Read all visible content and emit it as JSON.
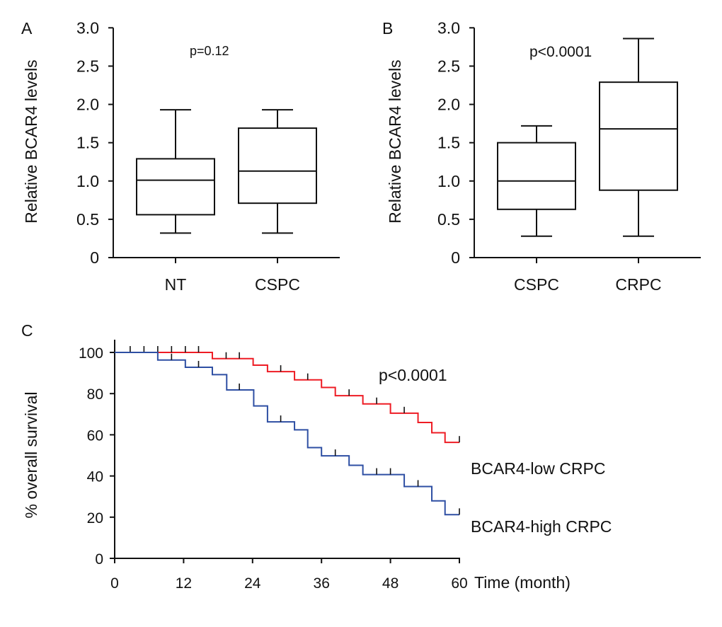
{
  "chart_data": [
    {
      "panel": "A",
      "type": "box",
      "ylabel": "Relative BCAR4 levels",
      "ylim": [
        0,
        3.0
      ],
      "yticks": [
        "0",
        "0.5",
        "1.0",
        "1.5",
        "2.0",
        "2.5",
        "3.0"
      ],
      "annotation": "p=0.12",
      "categories": [
        "NT",
        "CSPC"
      ],
      "boxes": [
        {
          "min": 0.32,
          "q1": 0.56,
          "median": 1.01,
          "q3": 1.29,
          "max": 1.93
        },
        {
          "min": 0.32,
          "q1": 0.71,
          "median": 1.13,
          "q3": 1.69,
          "max": 1.93
        }
      ]
    },
    {
      "panel": "B",
      "type": "box",
      "ylabel": "Relative BCAR4 levels",
      "ylim": [
        0,
        3.0
      ],
      "yticks": [
        "0",
        "0.5",
        "1.0",
        "1.5",
        "2.0",
        "2.5",
        "3.0"
      ],
      "annotation": "p<0.0001",
      "categories": [
        "CSPC",
        "CRPC"
      ],
      "boxes": [
        {
          "min": 0.28,
          "q1": 0.63,
          "median": 1.0,
          "q3": 1.5,
          "max": 1.72
        },
        {
          "min": 0.28,
          "q1": 0.88,
          "median": 1.68,
          "q3": 2.29,
          "max": 2.86
        }
      ]
    },
    {
      "panel": "C",
      "type": "line",
      "subtype": "kaplan-meier step",
      "ylabel": "% overall survival",
      "xlabel": "Time (month)",
      "xlim": [
        0,
        60
      ],
      "ylim": [
        0,
        100
      ],
      "xticks": [
        "0",
        "12",
        "24",
        "36",
        "48",
        "60"
      ],
      "yticks": [
        "0",
        "20",
        "40",
        "60",
        "80",
        "100"
      ],
      "annotation": "p<0.0001",
      "series": [
        {
          "name": "BCAR4-low CRPC",
          "color": "#ee1c24",
          "steps": [
            [
              0,
              100
            ],
            [
              17,
              97
            ],
            [
              24.1,
              93.8
            ],
            [
              26.6,
              90.7
            ],
            [
              31.3,
              86.7
            ],
            [
              36,
              83
            ],
            [
              38.4,
              79
            ],
            [
              43.2,
              75
            ],
            [
              48,
              70.5
            ],
            [
              52.8,
              66
            ],
            [
              55.2,
              61
            ],
            [
              57.5,
              56.3
            ],
            [
              60,
              56.3
            ]
          ],
          "censored": [
            [
              2.7,
              100
            ],
            [
              5.1,
              100
            ],
            [
              7.5,
              100
            ],
            [
              9.9,
              100
            ],
            [
              12.3,
              100
            ],
            [
              14.6,
              100
            ],
            [
              19.4,
              97
            ],
            [
              21.7,
              97
            ],
            [
              28.9,
              90.7
            ],
            [
              33.6,
              86.7
            ],
            [
              40.8,
              79
            ],
            [
              45.6,
              75
            ],
            [
              50.4,
              70.5
            ],
            [
              60,
              56.3
            ]
          ]
        },
        {
          "name": "BCAR4-high CRPC",
          "color": "#2e4fa3",
          "steps": [
            [
              0,
              100
            ],
            [
              7.5,
              96.3
            ],
            [
              12.3,
              92.8
            ],
            [
              17,
              89.2
            ],
            [
              19.5,
              81.8
            ],
            [
              24.2,
              74
            ],
            [
              26.6,
              66.3
            ],
            [
              31.3,
              62.4
            ],
            [
              33.6,
              53.8
            ],
            [
              36,
              49.8
            ],
            [
              40.8,
              45.2
            ],
            [
              43.2,
              40.7
            ],
            [
              50.4,
              34.9
            ],
            [
              55.2,
              27.9
            ],
            [
              57.5,
              21.2
            ],
            [
              60,
              21.2
            ]
          ],
          "censored": [
            [
              9.9,
              96.3
            ],
            [
              14.6,
              92.8
            ],
            [
              21.7,
              81.8
            ],
            [
              28.9,
              66.3
            ],
            [
              38.4,
              49.8
            ],
            [
              45.6,
              40.7
            ],
            [
              48,
              40.7
            ],
            [
              52.8,
              34.9
            ],
            [
              60,
              21.2
            ]
          ]
        }
      ]
    }
  ]
}
